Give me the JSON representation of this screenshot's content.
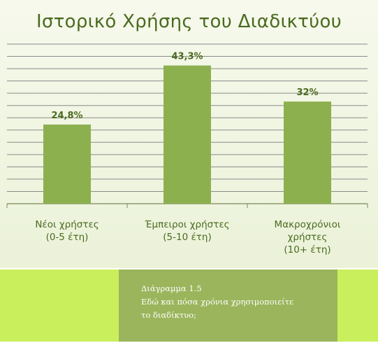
{
  "chart_data": {
    "type": "bar",
    "title": "Ιστορικό Χρήσης του Διαδικτύου",
    "categories": [
      [
        "Νέοι χρήστες",
        "(0-5 έτη)"
      ],
      [
        "Έμπειροι χρήστες",
        "(5-10 έτη)"
      ],
      [
        "Μακροχρόνιοι",
        "χρήστες",
        "(10+ έτη)"
      ]
    ],
    "values": [
      24.8,
      43.3,
      32
    ],
    "data_labels": [
      "24,8%",
      "43,3%",
      "32%"
    ],
    "ylim": [
      0,
      50
    ],
    "grid": true,
    "bar_color": "#8db04f",
    "axis_color": "#7a8a5a",
    "text_color": "#4a6a1f"
  },
  "caption": {
    "line1": "Διάγραμμα 1.5",
    "line2": "Εδώ και πόσα χρόνια χρησιμοποιείτε",
    "line3": "το διαδίκτυο;"
  },
  "colors": {
    "band": "#c9ef5d",
    "caption_box": "#9bb55c"
  }
}
